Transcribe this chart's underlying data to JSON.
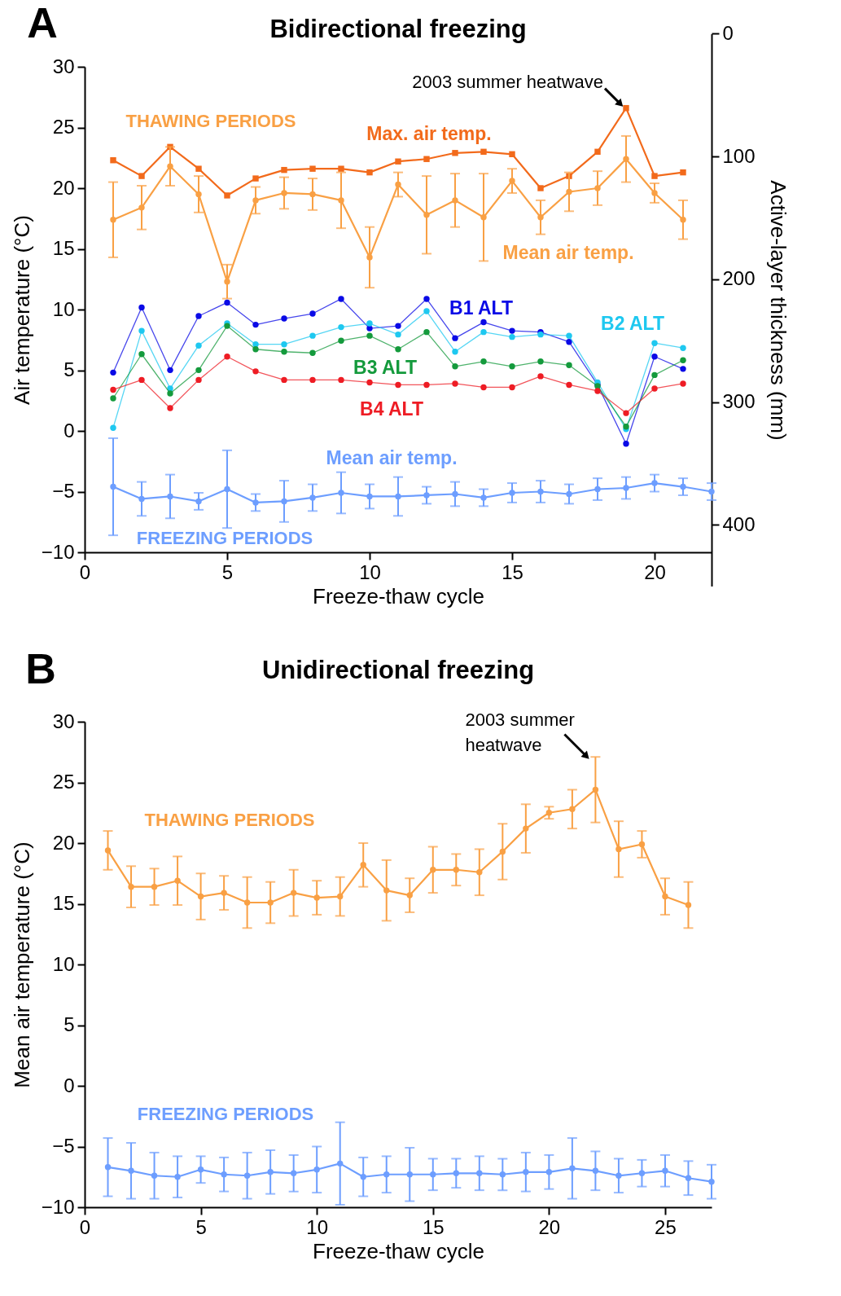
{
  "chart_data": [
    {
      "type": "line",
      "title": "Bidirectional freezing",
      "xlabel": "Freeze-thaw cycle",
      "ylabel": "Air temperature (°C)",
      "y2label": "Active-layer thickness (mm)",
      "x": [
        1,
        2,
        3,
        4,
        5,
        6,
        7,
        8,
        9,
        10,
        11,
        12,
        13,
        14,
        15,
        16,
        17,
        18,
        19,
        20,
        21
      ],
      "xlim": [
        0,
        22
      ],
      "xticks": [
        0,
        5,
        10,
        15,
        20
      ],
      "ylim": [
        -10,
        30
      ],
      "yticks": [
        -10,
        -5,
        0,
        5,
        10,
        15,
        20,
        25,
        30
      ],
      "y2lim": [
        450,
        0
      ],
      "y2ticks": [
        0,
        100,
        200,
        300,
        400
      ],
      "marker": "circle",
      "series": [
        {
          "name": "Max. air temp.",
          "color": "#f26a1b",
          "marker": "square",
          "values": [
            22.3,
            21.0,
            23.4,
            21.6,
            19.4,
            20.8,
            21.5,
            21.6,
            21.6,
            21.3,
            22.2,
            22.4,
            22.9,
            23.0,
            22.8,
            20.0,
            21.0,
            23.0,
            26.6,
            21.0,
            21.3
          ]
        },
        {
          "name": "Mean air temp.",
          "color": "#f9a044",
          "values": [
            17.4,
            18.4,
            21.8,
            19.5,
            12.3,
            19.0,
            19.6,
            19.5,
            19.0,
            14.3,
            20.3,
            17.8,
            19.0,
            17.6,
            20.6,
            17.6,
            19.7,
            20.0,
            22.4,
            19.6,
            17.4
          ],
          "errors": [
            3.1,
            1.8,
            1.6,
            1.5,
            1.4,
            1.1,
            1.3,
            1.3,
            2.3,
            2.5,
            1.0,
            3.2,
            2.2,
            3.6,
            1.0,
            1.4,
            1.6,
            1.4,
            1.9,
            0.8,
            1.6
          ]
        },
        {
          "name": "B1 ALT",
          "color": "#0a0ae6",
          "axis": "y2",
          "values": [
            276,
            223,
            274,
            230,
            219,
            237,
            232,
            228,
            216,
            240,
            238,
            216,
            248,
            235,
            242,
            243,
            251,
            286,
            334,
            263,
            273
          ]
        },
        {
          "name": "B2 ALT",
          "color": "#1ec8f0",
          "axis": "y2",
          "values": [
            321,
            242,
            289,
            254,
            236,
            253,
            253,
            246,
            239,
            236,
            245,
            226,
            259,
            243,
            247,
            245,
            246,
            284,
            322,
            252,
            256
          ]
        },
        {
          "name": "B3 ALT",
          "color": "#149a3c",
          "axis": "y2",
          "values": [
            297,
            261,
            293,
            274,
            238,
            257,
            259,
            260,
            250,
            246,
            257,
            243,
            271,
            267,
            271,
            267,
            270,
            287,
            320,
            278,
            266
          ]
        },
        {
          "name": "B4 ALT",
          "color": "#ee1c24",
          "axis": "y2",
          "values": [
            290,
            282,
            305,
            282,
            263,
            275,
            282,
            282,
            282,
            284,
            286,
            286,
            285,
            288,
            288,
            279,
            286,
            291,
            309,
            289,
            285
          ]
        },
        {
          "name": "Mean air temp.",
          "color": "#6d9eff",
          "x": [
            1,
            2,
            3,
            4,
            5,
            6,
            7,
            8,
            9,
            10,
            11,
            12,
            13,
            14,
            15,
            16,
            17,
            18,
            19,
            20,
            21,
            22
          ],
          "values": [
            -4.6,
            -5.6,
            -5.4,
            -5.8,
            -4.8,
            -5.9,
            -5.8,
            -5.5,
            -5.1,
            -5.4,
            -5.4,
            -5.3,
            -5.2,
            -5.5,
            -5.1,
            -5.0,
            -5.2,
            -4.8,
            -4.7,
            -4.3,
            -4.6,
            -5.0
          ],
          "errors": [
            4.0,
            1.4,
            1.8,
            0.7,
            3.2,
            0.7,
            1.7,
            1.1,
            1.7,
            1.0,
            1.6,
            0.7,
            1.0,
            0.7,
            0.8,
            0.9,
            0.8,
            0.9,
            0.9,
            0.7,
            0.7,
            0.7
          ]
        }
      ],
      "annotations": [
        "A",
        "THAWING PERIODS",
        "FREEZING PERIODS",
        {
          "text": "2003 summer heatwave",
          "x": 19,
          "y": 26.6
        }
      ]
    },
    {
      "type": "line",
      "title": "Unidirectional freezing",
      "xlabel": "Freeze-thaw cycle",
      "ylabel": "Mean air temperature (°C)",
      "xlim": [
        0,
        27
      ],
      "xticks": [
        0,
        5,
        10,
        15,
        20,
        25
      ],
      "ylim": [
        -10,
        30
      ],
      "yticks": [
        -10,
        -5,
        0,
        5,
        10,
        15,
        20,
        25,
        30
      ],
      "marker": "circle",
      "series": [
        {
          "color": "#f9a044",
          "x": [
            1,
            2,
            3,
            4,
            5,
            6,
            7,
            8,
            9,
            10,
            11,
            12,
            13,
            14,
            15,
            16,
            17,
            18,
            19,
            20,
            21,
            22,
            23,
            24,
            25,
            26
          ],
          "values": [
            19.4,
            16.4,
            16.4,
            16.9,
            15.6,
            15.9,
            15.1,
            15.1,
            15.9,
            15.5,
            15.6,
            18.2,
            16.1,
            15.7,
            17.8,
            17.8,
            17.6,
            19.3,
            21.2,
            22.5,
            22.8,
            24.4,
            19.5,
            19.9,
            15.6,
            14.9
          ],
          "errors": [
            1.6,
            1.7,
            1.5,
            2.0,
            1.9,
            1.4,
            2.1,
            1.7,
            1.9,
            1.4,
            1.6,
            1.8,
            2.5,
            1.4,
            1.9,
            1.3,
            1.9,
            2.3,
            2.0,
            0.5,
            1.6,
            2.7,
            2.3,
            1.1,
            1.5,
            1.9
          ]
        },
        {
          "color": "#6d9eff",
          "x": [
            1,
            2,
            3,
            4,
            5,
            6,
            7,
            8,
            9,
            10,
            11,
            12,
            13,
            14,
            15,
            16,
            17,
            18,
            19,
            20,
            21,
            22,
            23,
            24,
            25,
            26,
            27
          ],
          "values": [
            -6.7,
            -7.0,
            -7.4,
            -7.5,
            -6.9,
            -7.3,
            -7.4,
            -7.1,
            -7.2,
            -6.9,
            -6.4,
            -7.5,
            -7.3,
            -7.3,
            -7.3,
            -7.2,
            -7.2,
            -7.3,
            -7.1,
            -7.1,
            -6.8,
            -7.0,
            -7.4,
            -7.2,
            -7.0,
            -7.6,
            -7.9
          ],
          "errors": [
            2.4,
            2.3,
            1.9,
            1.7,
            1.1,
            1.4,
            1.9,
            1.8,
            1.5,
            1.9,
            3.4,
            1.6,
            1.5,
            2.2,
            1.3,
            1.2,
            1.4,
            1.3,
            1.6,
            1.4,
            2.5,
            1.6,
            1.4,
            1.1,
            1.3,
            1.4,
            1.4
          ]
        }
      ],
      "annotations": [
        "B",
        "THAWING PERIODS",
        "FREEZING PERIODS",
        {
          "text": "2003 summer\nheatwave",
          "x": 22,
          "y": 24.4
        }
      ]
    }
  ]
}
